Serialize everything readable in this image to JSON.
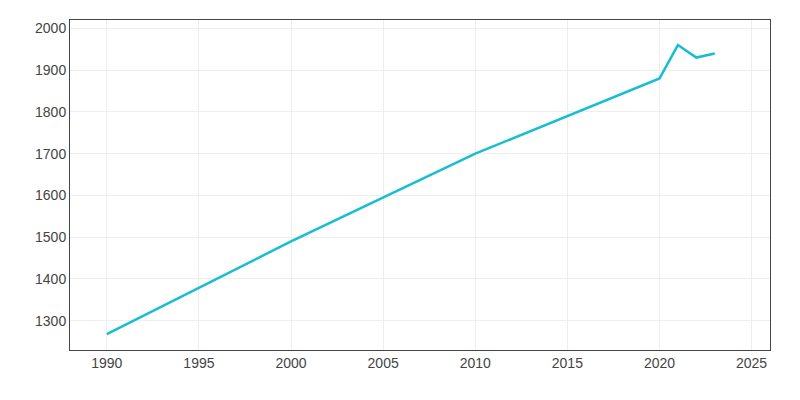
{
  "chart_data": {
    "type": "line",
    "x": [
      1990,
      2000,
      2010,
      2020,
      2021,
      2022,
      2023
    ],
    "values": [
      1268,
      1490,
      1700,
      1880,
      1960,
      1930,
      1940
    ],
    "color": "#17BECF",
    "xlim": [
      1988,
      2026
    ],
    "ylim": [
      1230,
      2020
    ],
    "xticks": [
      1990,
      1995,
      2000,
      2005,
      2010,
      2015,
      2020,
      2025
    ],
    "yticks": [
      1300,
      1400,
      1500,
      1600,
      1700,
      1800,
      1900,
      2000
    ],
    "grid": true
  }
}
